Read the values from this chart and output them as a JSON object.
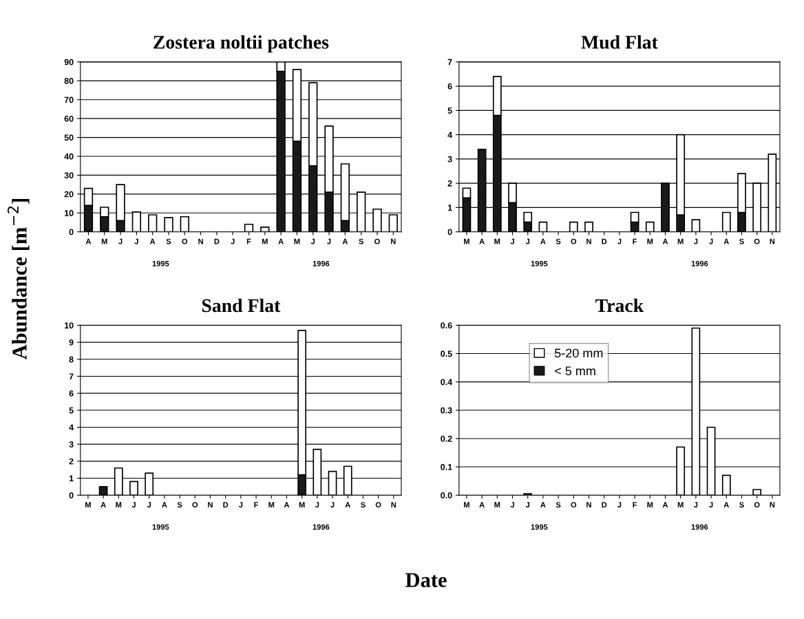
{
  "chart_data": [
    {
      "type": "bar",
      "stacked": true,
      "title": "Zostera noltii patches",
      "ylabel": "Abundance [m$^{−2}$]",
      "xlabel": "Date",
      "categories": [
        "A",
        "M",
        "J",
        "J",
        "A",
        "S",
        "O",
        "N",
        "D",
        "J",
        "F",
        "M",
        "A",
        "M",
        "J",
        "J",
        "A",
        "S",
        "O",
        "N"
      ],
      "ylim": [
        0,
        90
      ],
      "yticks": [
        0,
        10,
        20,
        30,
        40,
        50,
        60,
        70,
        80,
        90
      ],
      "grid": "y",
      "annotations": [
        "1995",
        "1996"
      ],
      "series": [
        {
          "color": "#1a1a1a",
          "values": [
            14,
            8,
            6,
            0,
            0,
            0,
            0,
            0,
            0,
            0,
            0,
            0,
            85,
            48,
            35,
            21,
            6,
            0,
            0,
            0
          ]
        },
        {
          "color": "#ffffff",
          "values": [
            9,
            5,
            19,
            10.5,
            9,
            7.5,
            8,
            0,
            0,
            0,
            4,
            2.5,
            5,
            38,
            44,
            35,
            30,
            21,
            12,
            9
          ]
        }
      ]
    },
    {
      "type": "bar",
      "stacked": true,
      "title": "Mud Flat",
      "categories": [
        "M",
        "A",
        "M",
        "J",
        "J",
        "A",
        "S",
        "O",
        "N",
        "D",
        "J",
        "F",
        "M",
        "A",
        "M",
        "J",
        "J",
        "A",
        "S",
        "O",
        "N"
      ],
      "ylim": [
        0,
        7
      ],
      "yticks": [
        0,
        1,
        2,
        3,
        4,
        5,
        6,
        7
      ],
      "grid": "y",
      "annotations": [
        "1995",
        "1996"
      ],
      "series": [
        {
          "color": "#1a1a1a",
          "values": [
            1.4,
            3.4,
            4.8,
            1.2,
            0.4,
            0,
            0,
            0,
            0,
            0,
            0,
            0.4,
            0,
            2.0,
            0.7,
            0,
            0,
            0,
            0.8,
            0,
            0
          ]
        },
        {
          "color": "#ffffff",
          "values": [
            0.4,
            0,
            1.6,
            0.8,
            0.4,
            0.4,
            0,
            0.4,
            0.4,
            0,
            0,
            0.4,
            0.4,
            0,
            3.3,
            0.5,
            0,
            0.8,
            1.6,
            2.0,
            3.2
          ]
        }
      ]
    },
    {
      "type": "bar",
      "stacked": true,
      "title": "Sand Flat",
      "categories": [
        "M",
        "A",
        "M",
        "J",
        "J",
        "A",
        "S",
        "O",
        "N",
        "D",
        "J",
        "F",
        "M",
        "A",
        "M",
        "J",
        "J",
        "A",
        "S",
        "O",
        "N"
      ],
      "ylim": [
        0,
        10
      ],
      "yticks": [
        0,
        1,
        2,
        3,
        4,
        5,
        6,
        7,
        8,
        9,
        10
      ],
      "grid": "y",
      "annotations": [
        "1995",
        "1996"
      ],
      "series": [
        {
          "color": "#1a1a1a",
          "values": [
            0,
            0.5,
            0,
            0,
            0,
            0,
            0,
            0,
            0,
            0,
            0,
            0,
            0,
            0,
            1.2,
            0,
            0,
            0,
            0,
            0,
            0
          ]
        },
        {
          "color": "#ffffff",
          "values": [
            0,
            0,
            1.6,
            0.8,
            1.3,
            0,
            0,
            0,
            0,
            0,
            0,
            0,
            0,
            0,
            8.5,
            2.7,
            1.4,
            1.7,
            0,
            0,
            0
          ]
        }
      ]
    },
    {
      "type": "bar",
      "stacked": true,
      "title": "Track",
      "categories": [
        "M",
        "A",
        "M",
        "J",
        "J",
        "A",
        "S",
        "O",
        "N",
        "D",
        "J",
        "F",
        "M",
        "A",
        "M",
        "J",
        "J",
        "A",
        "S",
        "O",
        "N"
      ],
      "ylim": [
        0,
        0.6
      ],
      "yticks": [
        {
          "value": 0,
          "label": "0.0"
        },
        0.1,
        0.2,
        0.3,
        0.4,
        0.5,
        0.6
      ],
      "grid": "y",
      "legend": "top left",
      "annotations": [
        "1995",
        "1996"
      ],
      "series": [
        {
          "name": "< 5 mm",
          "color": "#1a1a1a",
          "values": [
            0,
            0,
            0,
            0,
            0,
            0,
            0,
            0,
            0,
            0,
            0,
            0,
            0,
            0,
            0,
            0,
            0,
            0,
            0,
            0,
            0
          ]
        },
        {
          "name": "5-20 mm",
          "color": "#ffffff",
          "values": [
            0,
            0,
            0,
            0,
            0.005,
            0,
            0,
            0,
            0,
            0,
            0,
            0,
            0,
            0,
            0.17,
            0.59,
            0.24,
            0.07,
            0,
            0.02,
            0
          ]
        }
      ]
    }
  ]
}
